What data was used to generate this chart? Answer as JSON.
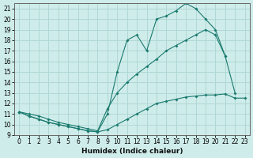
{
  "title": "",
  "xlabel": "Humidex (Indice chaleur)",
  "ylabel": "",
  "bg_color": "#ceecea",
  "grid_color": "#b0d8d4",
  "line_color": "#1a7a6e",
  "x_values": [
    0,
    1,
    2,
    3,
    4,
    5,
    6,
    7,
    8,
    9,
    10,
    11,
    12,
    13,
    14,
    15,
    16,
    17,
    18,
    19,
    20,
    21,
    22,
    23
  ],
  "line_min": [
    11.2,
    10.8,
    10.5,
    10.2,
    10.0,
    9.8,
    9.6,
    9.4,
    9.3,
    9.5,
    10.0,
    10.5,
    11.0,
    11.5,
    12.0,
    12.2,
    12.4,
    12.6,
    12.7,
    12.8,
    12.8,
    12.9,
    12.5,
    12.5
  ],
  "line_mid": [
    11.2,
    11.0,
    10.8,
    10.5,
    10.2,
    10.0,
    9.8,
    9.6,
    9.4,
    11.5,
    13.0,
    14.0,
    14.8,
    15.5,
    16.2,
    17.0,
    17.5,
    18.0,
    18.5,
    19.0,
    18.5,
    16.5,
    null,
    null
  ],
  "line_top": [
    11.2,
    10.8,
    10.5,
    10.2,
    10.0,
    9.8,
    9.6,
    9.4,
    9.3,
    11.0,
    15.0,
    18.0,
    18.5,
    17.0,
    20.0,
    20.3,
    20.8,
    21.5,
    21.0,
    20.0,
    19.0,
    16.5,
    13.0,
    null
  ],
  "ylim": [
    9,
    21.5
  ],
  "xlim": [
    -0.5,
    23.5
  ],
  "yticks": [
    9,
    10,
    11,
    12,
    13,
    14,
    15,
    16,
    17,
    18,
    19,
    20,
    21
  ],
  "xticks": [
    0,
    1,
    2,
    3,
    4,
    5,
    6,
    7,
    8,
    9,
    10,
    11,
    12,
    13,
    14,
    15,
    16,
    17,
    18,
    19,
    20,
    21,
    22,
    23
  ]
}
